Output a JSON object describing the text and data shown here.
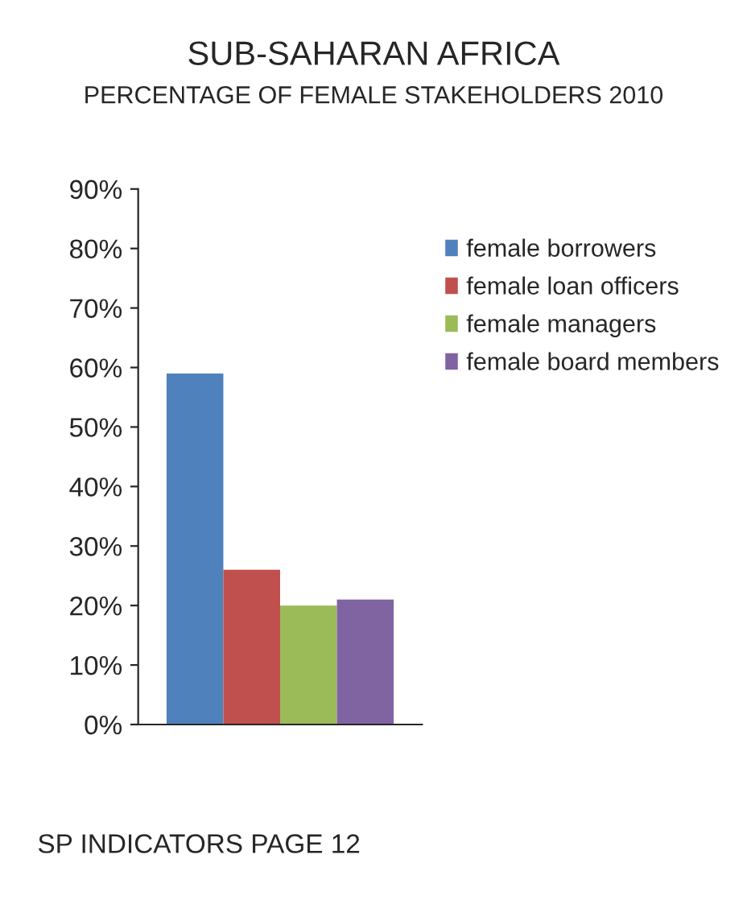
{
  "chart_data": {
    "type": "bar",
    "title": "SUB-SAHARAN AFRICA",
    "subtitle": "PERCENTAGE OF FEMALE STAKEHOLDERS 2010",
    "categories": [
      null
    ],
    "series": [
      {
        "name": "female borrowers",
        "color": "#4f81bd",
        "values": [
          59
        ]
      },
      {
        "name": "female loan officers",
        "color": "#c0504d",
        "values": [
          26
        ]
      },
      {
        "name": "female managers",
        "color": "#9bbb59",
        "values": [
          20
        ]
      },
      {
        "name": "female board members",
        "color": "#8064a2",
        "values": [
          21
        ]
      }
    ],
    "ylim": [
      0,
      90
    ],
    "yticks": [
      {
        "value": 0,
        "label": "0%"
      },
      {
        "value": 10,
        "label": "10%"
      },
      {
        "value": 20,
        "label": "20%"
      },
      {
        "value": 30,
        "label": "30%"
      },
      {
        "value": 40,
        "label": "40%"
      },
      {
        "value": 50,
        "label": "50%"
      },
      {
        "value": 60,
        "label": "60%"
      },
      {
        "value": 70,
        "label": "70%"
      },
      {
        "value": 80,
        "label": "80%"
      },
      {
        "value": 90,
        "label": "90%"
      }
    ],
    "legend": "right",
    "grid": false,
    "annotations": [
      "SP INDICATORS PAGE 12"
    ]
  }
}
